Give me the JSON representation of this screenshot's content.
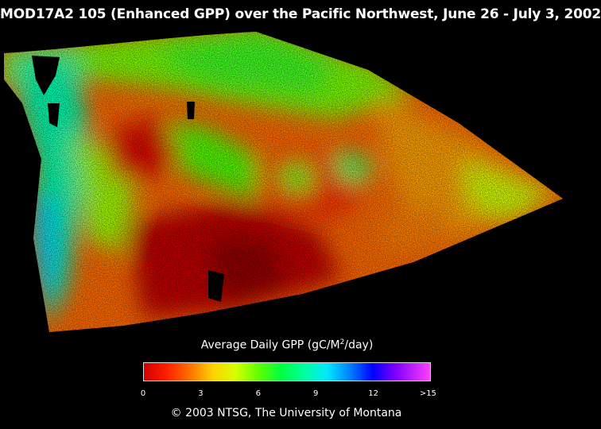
{
  "title": "MOD17A2 105 (Enhanced GPP) over the Pacific Northwest, June 26 - July 3, 2002",
  "legend": {
    "title_pre": "Average Daily GPP (gC/M",
    "title_sup": "2",
    "title_post": "/day)",
    "ticks": [
      "0",
      "3",
      "6",
      "9",
      "12",
      ">15"
    ],
    "colors": [
      "#d00000",
      "#ff7000",
      "#ffd000",
      "#60ff00",
      "#00ffa0",
      "#00e8ff",
      "#0000ff",
      "#8000ff",
      "#ff40ff"
    ]
  },
  "copyright": "© 2003 NTSG, The University of Montana"
}
